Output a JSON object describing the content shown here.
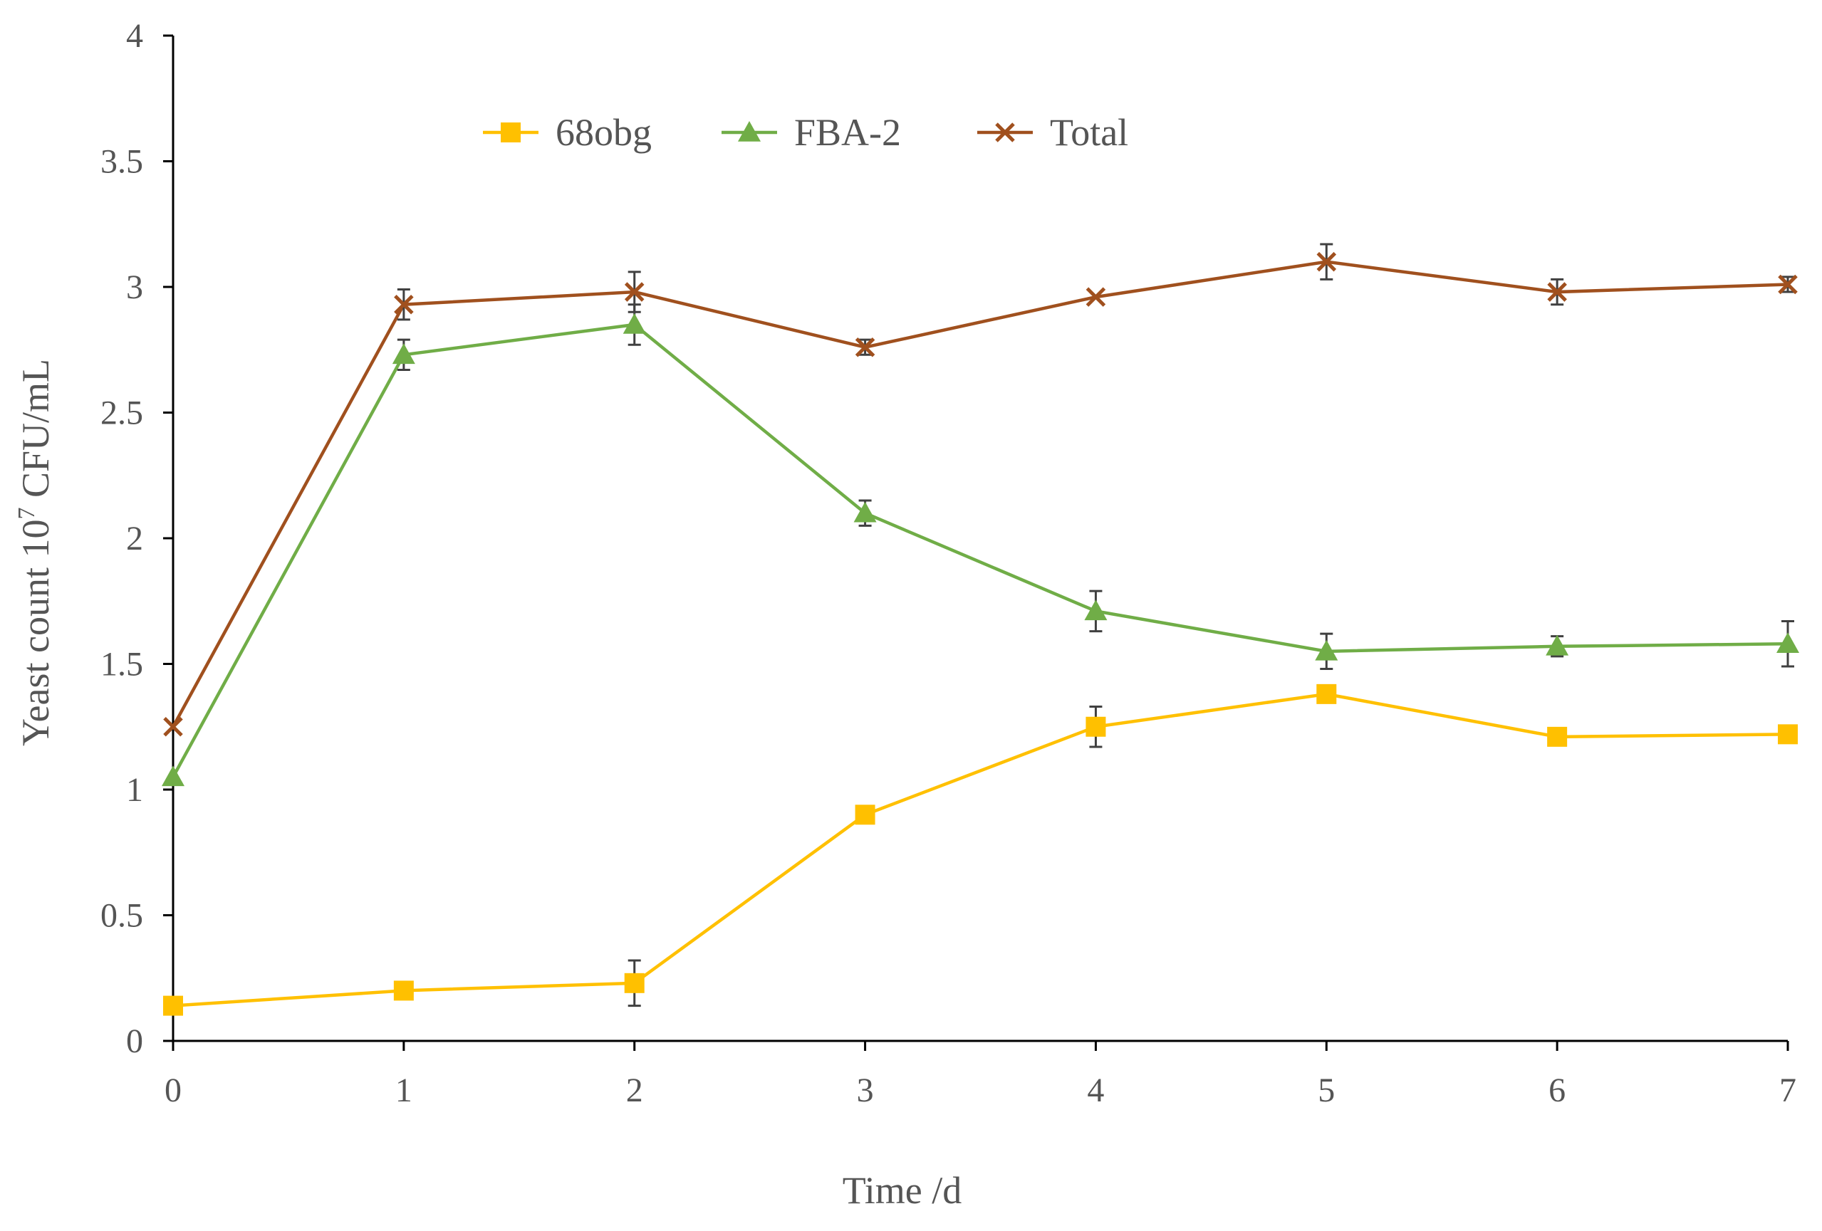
{
  "chart_data": {
    "type": "line",
    "title": "",
    "xlabel": "Time /d",
    "ylabel_prefix": "Yeast count 10",
    "ylabel_exponent": "7",
    "ylabel_suffix": " CFU/mL",
    "x": [
      0,
      1,
      2,
      3,
      4,
      5,
      6,
      7
    ],
    "x_tick_labels": [
      "0",
      "1",
      "2",
      "3",
      "4",
      "5",
      "6",
      "7"
    ],
    "xlim": [
      0,
      7
    ],
    "ylim": [
      0,
      4
    ],
    "y_ticks": [
      0,
      0.5,
      1,
      1.5,
      2,
      2.5,
      3,
      3.5,
      4
    ],
    "y_tick_labels": [
      "0",
      "0.5",
      "1",
      "1.5",
      "2",
      "2.5",
      "3",
      "3.5",
      "4"
    ],
    "grid": false,
    "legend_position": "top-center",
    "series": [
      {
        "name": "68obg",
        "marker": "square",
        "color": "#FFC000",
        "values": [
          0.14,
          0.2,
          0.23,
          0.9,
          1.25,
          1.38,
          1.21,
          1.22
        ],
        "errors": [
          0.0,
          0.0,
          0.09,
          0.0,
          0.08,
          0.0,
          0.0,
          0.0
        ]
      },
      {
        "name": "FBA-2",
        "marker": "triangle",
        "color": "#70AD47",
        "values": [
          1.05,
          2.73,
          2.85,
          2.1,
          1.71,
          1.55,
          1.57,
          1.58
        ],
        "errors": [
          0.0,
          0.06,
          0.08,
          0.05,
          0.08,
          0.07,
          0.04,
          0.09
        ]
      },
      {
        "name": "Total",
        "marker": "x",
        "color": "#A0501E",
        "values": [
          1.25,
          2.93,
          2.98,
          2.76,
          2.96,
          3.1,
          2.98,
          3.01
        ],
        "errors": [
          0.0,
          0.06,
          0.08,
          0.03,
          0.0,
          0.07,
          0.05,
          0.03
        ]
      }
    ]
  }
}
